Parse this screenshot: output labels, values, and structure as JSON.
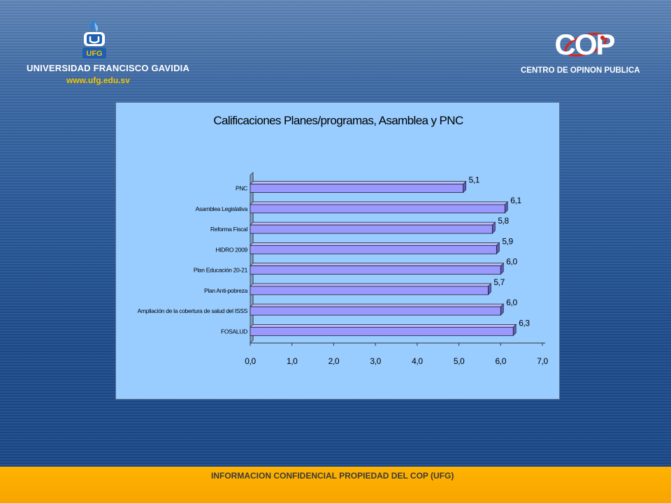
{
  "header": {
    "university_emblem_text": "UFG",
    "university_name": "UNIVERSIDAD FRANCISCO GAVIDIA",
    "university_url": "www.ufg.edu.sv",
    "cop_logo_text": "COP",
    "cop_name": "CENTRO DE OPINON PUBLICA"
  },
  "footer": {
    "notice": "INFORMACION CONFIDENCIAL PROPIEDAD DEL COP (UFG)"
  },
  "colors": {
    "background_blue": "#1f4f8f",
    "panel": "#99ccff",
    "bar": "#9999ff",
    "footer": "#ffb300"
  },
  "chart_data": {
    "type": "bar",
    "orientation": "horizontal",
    "title": "Calificaciones Planes/programas, Asamblea y PNC",
    "categories": [
      "PNC",
      "Asamblea Legislativa",
      "Reforma Fiscal",
      "HIDRO 2009",
      "Plan Educación 20-21",
      "Plan Anti-pobreza",
      "Ampliación de la cobertura de salud del ISSS",
      "FOSALUD"
    ],
    "values": [
      5.1,
      6.1,
      5.8,
      5.9,
      6.0,
      5.7,
      6.0,
      6.3
    ],
    "value_labels": [
      "5,1",
      "6,1",
      "5,8",
      "5,9",
      "6,0",
      "5,7",
      "6,0",
      "6,3"
    ],
    "xlim": [
      0,
      7
    ],
    "xticks": [
      "0,0",
      "1,0",
      "2,0",
      "3,0",
      "4,0",
      "5,0",
      "6,0",
      "7,0"
    ],
    "grid": false,
    "legend": "none"
  }
}
